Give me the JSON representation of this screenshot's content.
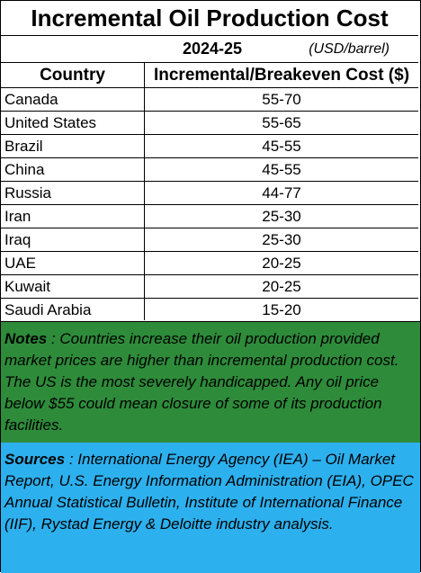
{
  "title": "Incremental  Oil Production Cost",
  "period": "2024-25",
  "unit": "(USD/barrel)",
  "headers": {
    "country": "Country",
    "cost": "Incremental/Breakeven Cost ($)"
  },
  "rows": [
    {
      "country": "Canada",
      "cost": "55-70"
    },
    {
      "country": "United States",
      "cost": "55-65"
    },
    {
      "country": "Brazil",
      "cost": "45-55"
    },
    {
      "country": "China",
      "cost": "45-55"
    },
    {
      "country": "Russia",
      "cost": "44-77"
    },
    {
      "country": "Iran",
      "cost": "25-30"
    },
    {
      "country": "Iraq",
      "cost": "25-30"
    },
    {
      "country": "UAE",
      "cost": "20-25"
    },
    {
      "country": "Kuwait",
      "cost": "20-25"
    },
    {
      "country": "Saudi Arabia",
      "cost": "15-20"
    }
  ],
  "notes": {
    "label": "Notes",
    "text": " : Countries increase their oil production provided market prices are higher than incremental production cost. The US is the most severely handicapped. Any oil price  below $55 could mean closure of some of its production facilities."
  },
  "sources": {
    "label": "Sources",
    "text": " : International Energy Agency (IEA) – Oil Market Report, U.S. Energy Information Administration (EIA), OPEC Annual Statistical Bulletin, Institute of International Finance (IIF), Rystad Energy & Deloitte industry analysis."
  },
  "colors": {
    "notes_bg": "#2e8b3a",
    "sources_bg": "#2db0ee"
  }
}
